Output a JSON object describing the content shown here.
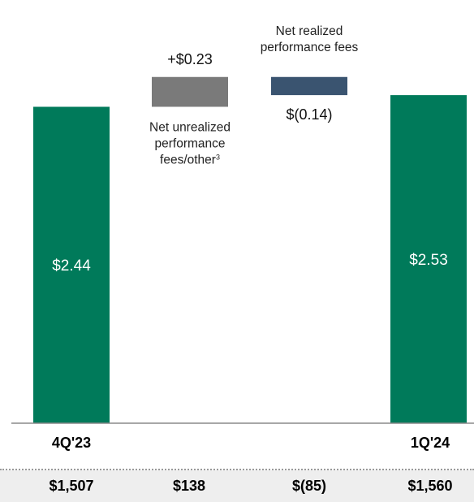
{
  "chart_data": {
    "type": "bar",
    "subtype": "waterfall",
    "categories": [
      "4Q'23",
      "",
      "",
      "1Q'24"
    ],
    "steps": [
      {
        "kind": "total",
        "category": "4Q'23",
        "value": 2.44,
        "label": "$2.44",
        "footer": "$1,507",
        "color": "#007a5a"
      },
      {
        "kind": "delta",
        "value": 0.23,
        "label": "+$0.23",
        "annotation": [
          "Net unrealized",
          "performance",
          "fees/other"
        ],
        "annotation_sup": "3",
        "footer": "$138",
        "color": "#7a7a7a"
      },
      {
        "kind": "delta",
        "value": -0.14,
        "label": "$(0.14)",
        "annotation": [
          "Net realized",
          "performance fees"
        ],
        "footer": "$(85)",
        "color": "#3a5470"
      },
      {
        "kind": "total",
        "category": "1Q'24",
        "value": 2.53,
        "label": "$2.53",
        "footer": "$1,560",
        "color": "#007a5a"
      }
    ],
    "ylim": [
      0,
      2.8
    ],
    "grid": false,
    "legend": "none"
  }
}
